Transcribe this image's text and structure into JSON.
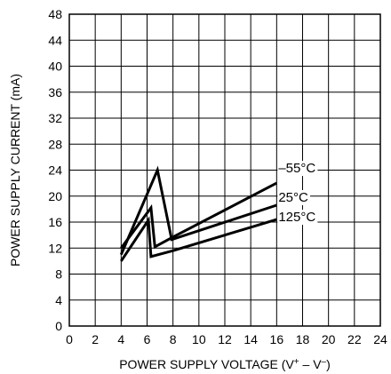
{
  "chart_data": {
    "type": "line",
    "title": "",
    "xlabel": "POWER SUPPLY VOLTAGE (V",
    "xlabel_plus": "+",
    "xlabel_sep": " – V",
    "xlabel_minus": "–",
    "xlabel_close": ")",
    "ylabel": "POWER SUPPLY CURRENT (mA)",
    "xlim": [
      0,
      24
    ],
    "ylim": [
      0,
      48
    ],
    "xticks": [
      "0",
      "2",
      "4",
      "6",
      "8",
      "10",
      "12",
      "14",
      "16",
      "18",
      "20",
      "22",
      "24"
    ],
    "yticks": [
      "0",
      "4",
      "8",
      "12",
      "16",
      "20",
      "24",
      "28",
      "32",
      "36",
      "40",
      "44",
      "48"
    ],
    "grid": true,
    "line_color": "#000000",
    "series": [
      {
        "name": "–55°C",
        "points": [
          [
            4,
            12
          ],
          [
            6.3,
            18.2
          ],
          [
            6.6,
            12.2
          ],
          [
            8,
            13.7
          ],
          [
            16,
            22
          ]
        ]
      },
      {
        "name": "25°C",
        "points": [
          [
            4,
            11
          ],
          [
            6.8,
            24
          ],
          [
            7.9,
            13.3
          ],
          [
            16,
            18.6
          ]
        ]
      },
      {
        "name": "125°C",
        "points": [
          [
            4,
            10
          ],
          [
            6.1,
            16.3
          ],
          [
            6.3,
            10.7
          ],
          [
            8,
            11.6
          ],
          [
            16,
            16.4
          ]
        ]
      }
    ]
  }
}
